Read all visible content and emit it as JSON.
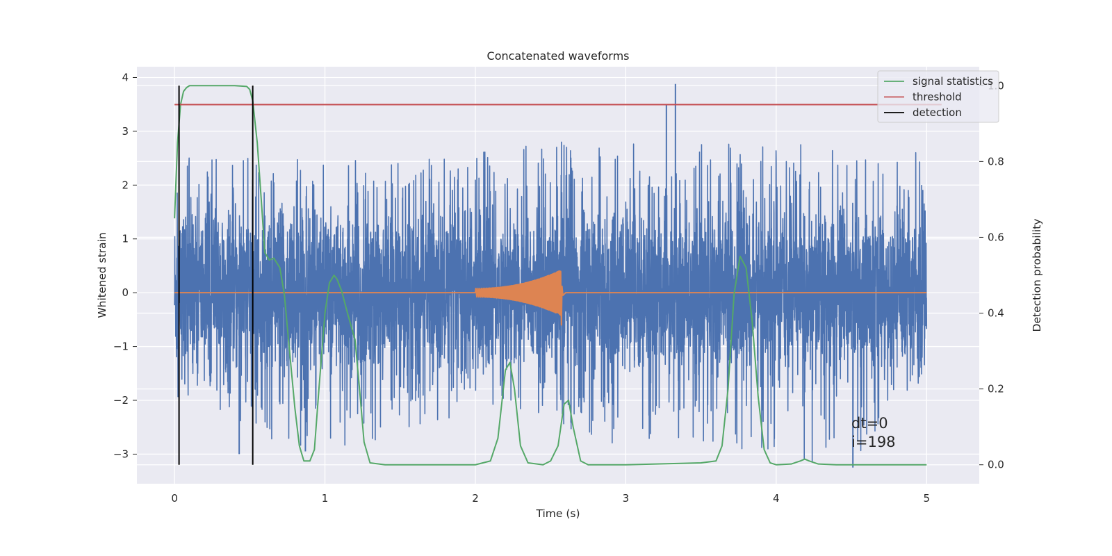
{
  "chart_data": {
    "type": "line",
    "title": "Concatenated waveforms",
    "xlabel": "Time (s)",
    "ylabel": "Whitened strain",
    "ylabel_right": "Detection probability",
    "xlim": [
      -0.25,
      5.35
    ],
    "ylim": [
      -3.55,
      4.2
    ],
    "ylim_right": [
      -0.05,
      1.05
    ],
    "xticks": [
      0,
      1,
      2,
      3,
      4,
      5
    ],
    "yticks": [
      -3,
      -2,
      -1,
      0,
      1,
      2,
      3,
      4
    ],
    "yticks_right": [
      0.0,
      0.2,
      0.4,
      0.6,
      0.8,
      1.0
    ],
    "grid": true,
    "style": "seaborn-darkgrid",
    "legend": {
      "position": "top-right",
      "entries": [
        {
          "label": "signal statistics",
          "color": "#55a868"
        },
        {
          "label": "threshold",
          "color": "#c44e52"
        },
        {
          "label": "detection",
          "color": "#000000"
        }
      ]
    },
    "annotations": [
      "dt=0",
      "i=198"
    ],
    "series": [
      {
        "kind": "noise",
        "axis": "left",
        "color": "#4c72b0",
        "x_range": [
          0,
          5
        ],
        "envelope": {
          "x": [
            0.0,
            0.5,
            1.0,
            1.5,
            2.0,
            2.5,
            3.0,
            3.5,
            4.0,
            4.5,
            5.0
          ],
          "max": [
            2.5,
            2.6,
            2.5,
            2.4,
            2.7,
            2.8,
            2.8,
            2.8,
            2.8,
            2.8,
            2.6
          ],
          "min": [
            -1.9,
            -2.6,
            -3.0,
            -2.6,
            -2.3,
            -2.4,
            -2.9,
            -2.8,
            -3.1,
            -3.2,
            -1.5
          ]
        },
        "spikes": [
          [
            3.33,
            3.88
          ],
          [
            3.27,
            3.5
          ],
          [
            4.51,
            -3.25
          ],
          [
            0.43,
            -3.0
          ],
          [
            0.87,
            -2.95
          ]
        ]
      },
      {
        "kind": "chirp",
        "axis": "left",
        "color": "#dd8452",
        "x_range": [
          0,
          5
        ],
        "chirp_start": 2.0,
        "chirp_end": 2.57,
        "chirp_max": 0.42,
        "chirp_min": -0.6
      },
      {
        "name": "signal statistics",
        "axis": "right",
        "color": "#55a868",
        "x": [
          0.0,
          0.02,
          0.04,
          0.06,
          0.08,
          0.1,
          0.15,
          0.2,
          0.3,
          0.4,
          0.48,
          0.5,
          0.52,
          0.55,
          0.58,
          0.6,
          0.63,
          0.66,
          0.7,
          0.73,
          0.76,
          0.8,
          0.83,
          0.86,
          0.9,
          0.93,
          0.96,
          1.0,
          1.03,
          1.06,
          1.08,
          1.11,
          1.15,
          1.2,
          1.23,
          1.26,
          1.3,
          1.4,
          2.0,
          2.1,
          2.15,
          2.2,
          2.23,
          2.26,
          2.3,
          2.35,
          2.45,
          2.5,
          2.55,
          2.59,
          2.62,
          2.65,
          2.7,
          2.75,
          3.0,
          3.5,
          3.6,
          3.64,
          3.68,
          3.72,
          3.76,
          3.8,
          3.84,
          3.88,
          3.92,
          3.96,
          4.0,
          4.1,
          4.16,
          4.19,
          4.22,
          4.28,
          4.4,
          5.0
        ],
        "values": [
          0.65,
          0.85,
          0.95,
          0.985,
          0.995,
          1.0,
          1.0,
          1.0,
          1.0,
          1.0,
          0.998,
          0.99,
          0.96,
          0.85,
          0.68,
          0.56,
          0.54,
          0.545,
          0.52,
          0.45,
          0.32,
          0.15,
          0.05,
          0.01,
          0.01,
          0.04,
          0.2,
          0.4,
          0.48,
          0.5,
          0.49,
          0.46,
          0.4,
          0.33,
          0.2,
          0.06,
          0.005,
          0.0,
          0.0,
          0.01,
          0.07,
          0.25,
          0.27,
          0.2,
          0.05,
          0.005,
          0.0,
          0.01,
          0.05,
          0.16,
          0.17,
          0.1,
          0.01,
          0.0,
          0.0,
          0.005,
          0.01,
          0.05,
          0.2,
          0.45,
          0.55,
          0.52,
          0.38,
          0.18,
          0.04,
          0.005,
          0.0,
          0.002,
          0.01,
          0.015,
          0.01,
          0.002,
          0.0,
          0.0
        ]
      },
      {
        "name": "threshold",
        "axis": "right",
        "color": "#c44e52",
        "x": [
          0.0,
          5.1
        ],
        "values": [
          0.95,
          0.95
        ]
      },
      {
        "name": "detection",
        "axis": "right",
        "color": "#000000",
        "kind": "vlines",
        "x": [
          0.03,
          0.52
        ],
        "y_range": [
          0.0,
          1.0
        ]
      }
    ]
  }
}
